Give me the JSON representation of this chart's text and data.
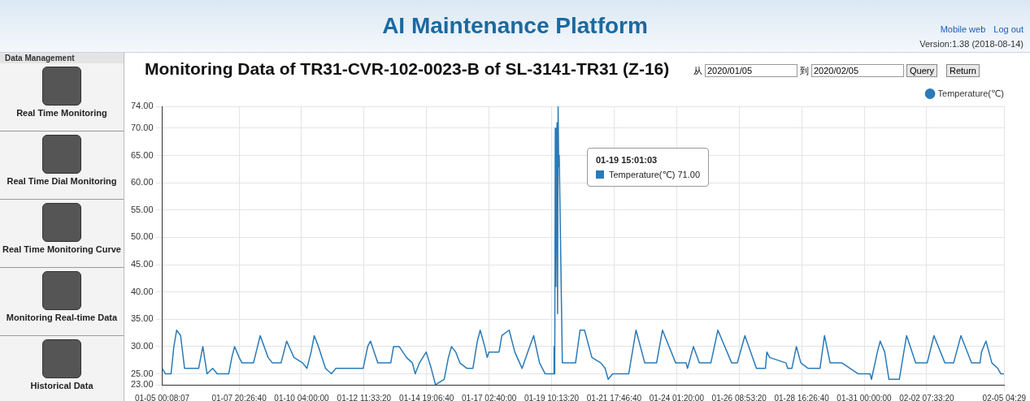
{
  "chart_data": {
    "type": "line",
    "title": "Monitoring Data of TR31-CVR-102-0023-B of SL-3141-TR31 (Z-16)",
    "annotations": [
      "AI Maintenance Platform",
      "Mobile web",
      "Log out",
      "Version:1.38 (2018-08-14)",
      "Data Management",
      "Real Time Monitoring",
      "Real Time Dial Monitoring",
      "Real Time Monitoring Curve",
      "Monitoring Real-time Data",
      "Historical Data",
      "从",
      "2020/01/05",
      "到",
      "2020/02/05",
      "Query",
      "Return",
      "01-19 15:01:03\nTemperature(℃) 71.00"
    ],
    "series": [
      {
        "name": "Temperature(℃)",
        "color": "#2a7ab8",
        "x": [
          "2020-01-05T00:08",
          "2020-01-05T03:00",
          "2020-01-05T08:00",
          "2020-01-05T10:30",
          "2020-01-05T13:00",
          "2020-01-05T16:30",
          "2020-01-05T20:00",
          "2020-01-06T08:30",
          "2020-01-06T12:15",
          "2020-01-06T16:00",
          "2020-01-06T21:00",
          "2020-01-07T01:00",
          "2020-01-07T11:15",
          "2020-01-07T14:00",
          "2020-01-07T16:30",
          "2020-01-07T20:30",
          "2020-01-07T23:00",
          "2020-01-08T09:15",
          "2020-01-08T15:15",
          "2020-01-08T22:15",
          "2020-01-09T02:00",
          "2020-01-09T09:45",
          "2020-01-09T14:45",
          "2020-01-09T21:15",
          "2020-01-10T05:00",
          "2020-01-10T08:45",
          "2020-01-10T12:30",
          "2020-01-10T15:15",
          "2020-01-10T19:00",
          "2020-01-11T01:15",
          "2020-01-11T06:30",
          "2020-01-11T10:30",
          "2020-01-12T10:45",
          "2020-01-12T14:45",
          "2020-01-12T17:15",
          "2020-01-12T23:45",
          "2020-01-13T11:15",
          "2020-01-13T13:45",
          "2020-01-13T18:45",
          "2020-01-14T01:15",
          "2020-01-14T06:30",
          "2020-01-14T09:00",
          "2020-01-14T12:45",
          "2020-01-14T18:45",
          "2020-01-14T23:15",
          "2020-01-15T03:00",
          "2020-01-15T10:45",
          "2020-01-15T14:30",
          "2020-01-15T17:15",
          "2020-01-15T21:00",
          "2020-01-16T00:45",
          "2020-01-16T07:00",
          "2020-01-16T12:15",
          "2020-01-16T16:15",
          "2020-01-16T18:45",
          "2020-01-16T22:45",
          "2020-01-17T01:00",
          "2020-01-17T02:30",
          "2020-01-17T11:30",
          "2020-01-17T14:00",
          "2020-01-17T20:30",
          "2020-01-18T01:30",
          "2020-01-18T08:00",
          "2020-01-18T13:00",
          "2020-01-18T18:15",
          "2020-01-18T23:30",
          "2020-01-19T04:30",
          "2020-01-19T12:00",
          "2020-01-19T12:15",
          "2020-01-19T12:30",
          "2020-01-19T13:00",
          "2020-01-19T13:30",
          "2020-01-19T14:00",
          "2020-01-19T15:01",
          "2020-01-19T15:30",
          "2020-01-19T16:00",
          "2020-01-19T16:30",
          "2020-01-19T17:00",
          "2020-01-19T19:45",
          "2020-01-20T07:30",
          "2020-01-20T11:30",
          "2020-01-20T15:30",
          "2020-01-20T22:00",
          "2020-01-21T06:00",
          "2020-01-21T09:45",
          "2020-01-21T12:30",
          "2020-01-21T16:30",
          "2020-01-22T06:45",
          "2020-01-22T13:15",
          "2020-01-22T21:00",
          "2020-01-23T07:30",
          "2020-01-23T12:45",
          "2020-01-24T00:30",
          "2020-01-24T09:45",
          "2020-01-24T11:00",
          "2020-01-24T16:15",
          "2020-01-24T21:30",
          "2020-01-25T07:45",
          "2020-01-25T14:00",
          "2020-01-26T02:15",
          "2020-01-26T07:15",
          "2020-01-26T14:00",
          "2020-01-27T00:15",
          "2020-01-27T08:15",
          "2020-01-27T09:30",
          "2020-01-27T12:00",
          "2020-01-28T02:30",
          "2020-01-28T04:00",
          "2020-01-28T07:45",
          "2020-01-28T11:45",
          "2020-01-28T15:45",
          "2020-01-28T22:15",
          "2020-01-29T08:45",
          "2020-01-29T12:45",
          "2020-01-29T17:45",
          "2020-01-30T04:15",
          "2020-01-30T18:45",
          "2020-01-31T05:15",
          "2020-01-31T06:30",
          "2020-01-31T11:45",
          "2020-01-31T14:15",
          "2020-01-31T18:15",
          "2020-01-31T22:00",
          "2020-02-01T07:15",
          "2020-02-01T11:15",
          "2020-02-01T13:45",
          "2020-02-01T21:45",
          "2020-02-02T08:00",
          "2020-02-02T14:00",
          "2020-02-02T23:45",
          "2020-02-03T07:30",
          "2020-02-03T14:00",
          "2020-02-03T23:25",
          "2020-02-04T07:00",
          "2020-02-04T08:15",
          "2020-02-04T12:15",
          "2020-02-04T17:30",
          "2020-02-04T22:45",
          "2020-02-05T01:30",
          "2020-02-05T04:15"
        ],
        "values": [
          26,
          25,
          25,
          30,
          33,
          32,
          26,
          26,
          30,
          25,
          26,
          25,
          25,
          28,
          30,
          28,
          27,
          27,
          32,
          28,
          27,
          27,
          31,
          28,
          27,
          26,
          29,
          32,
          30,
          26,
          25,
          26,
          26,
          30,
          31,
          27,
          27,
          30,
          30,
          28,
          27,
          25,
          27,
          29,
          26,
          23,
          24,
          28,
          30,
          29,
          27,
          26,
          26,
          31,
          33,
          30,
          28,
          29,
          29,
          32,
          33,
          29,
          26,
          29,
          32,
          27,
          25,
          25,
          30,
          25,
          25,
          70,
          41,
          71,
          36,
          74,
          63,
          65,
          27,
          27,
          33,
          33,
          28,
          27,
          26,
          24,
          25,
          25,
          33,
          27,
          27,
          33,
          27,
          27,
          26,
          30,
          27,
          27,
          33,
          27,
          27,
          32,
          26,
          26,
          29,
          28,
          27,
          26,
          26,
          30,
          27,
          26,
          26,
          32,
          27,
          27,
          25,
          25,
          24,
          29,
          31,
          29,
          24,
          24,
          29,
          32,
          27,
          27,
          32,
          27,
          27,
          32,
          27,
          27,
          29,
          31,
          27,
          26,
          25,
          25
        ]
      }
    ],
    "xlim": [
      "2020-01-05T00:08",
      "2020-02-05T04:29"
    ],
    "xticks": [
      {
        "value": "2020-01-05T00:08:07",
        "label": "01-05 00:08:07"
      },
      {
        "value": "2020-01-07T20:26:40",
        "label": "01-07 20:26:40"
      },
      {
        "value": "2020-01-10T04:00",
        "label": "01-10 04:00:00"
      },
      {
        "value": "2020-01-12T11:33:20",
        "label": "01-12 11:33:20"
      },
      {
        "value": "2020-01-14T19:06:40",
        "label": "01-14 19:06:40"
      },
      {
        "value": "2020-01-17T02:40",
        "label": "01-17 02:40:00"
      },
      {
        "value": "2020-01-19T10:13:20",
        "label": "01-19 10:13:20"
      },
      {
        "value": "2020-01-21T17:46:40",
        "label": "01-21 17:46:40"
      },
      {
        "value": "2020-01-24T01:20",
        "label": "01-24 01:20:00"
      },
      {
        "value": "2020-01-26T08:53:20",
        "label": "01-26 08:53:20"
      },
      {
        "value": "2020-01-28T16:26:40",
        "label": "01-28 16:26:40"
      },
      {
        "value": "2020-01-31T00:00",
        "label": "01-31 00:00:00"
      },
      {
        "value": "2020-02-02T07:33:20",
        "label": "02-02 07:33:20"
      },
      {
        "value": "2020-02-05T04:29",
        "label": "02-05 04:29"
      }
    ],
    "ylim": [
      23,
      74
    ],
    "yticks": [
      {
        "value": 23,
        "label": "23.00"
      },
      {
        "value": 25,
        "label": "25.00"
      },
      {
        "value": 30,
        "label": "30.00"
      },
      {
        "value": 35,
        "label": "35.00"
      },
      {
        "value": 40,
        "label": "40.00"
      },
      {
        "value": 45,
        "label": "45.00"
      },
      {
        "value": 50,
        "label": "50.00"
      },
      {
        "value": 55,
        "label": "55.00"
      },
      {
        "value": 60,
        "label": "60.00"
      },
      {
        "value": 65,
        "label": "65.00"
      },
      {
        "value": 70,
        "label": "70.00"
      },
      {
        "value": 74,
        "label": "74.00"
      }
    ],
    "grid": true,
    "legend": "top right",
    "marker": "none",
    "line_style": "solid"
  }
}
